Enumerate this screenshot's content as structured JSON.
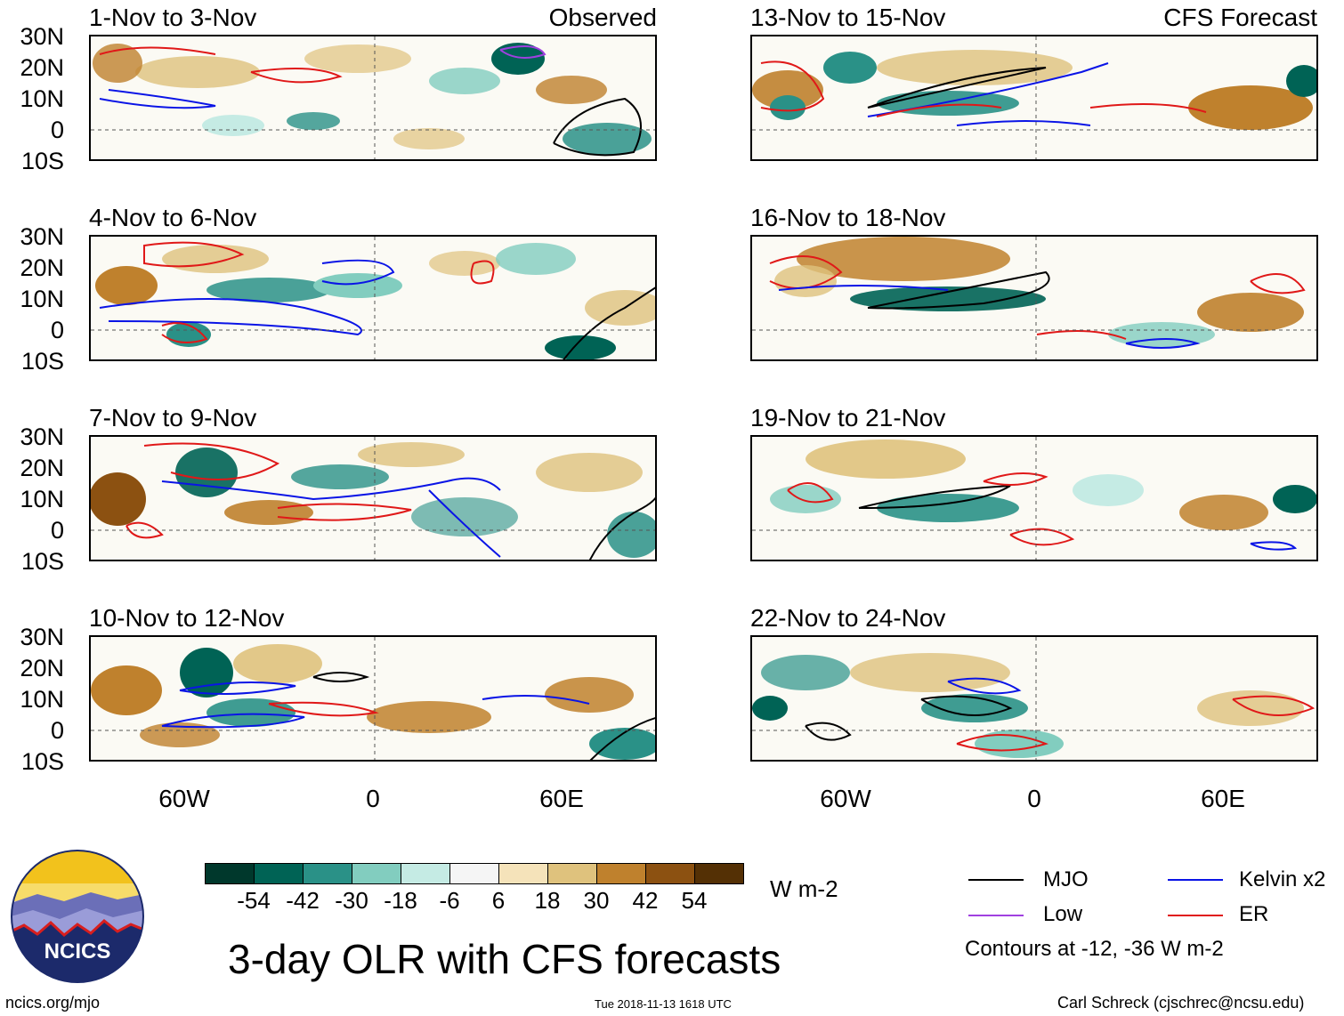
{
  "header": {
    "observed_label": "Observed",
    "forecast_label": "CFS Forecast"
  },
  "panels": {
    "left": [
      {
        "title": "1-Nov to 3-Nov"
      },
      {
        "title": "4-Nov to 6-Nov"
      },
      {
        "title": "7-Nov to 9-Nov"
      },
      {
        "title": "10-Nov to 12-Nov"
      }
    ],
    "right": [
      {
        "title": "13-Nov to 15-Nov"
      },
      {
        "title": "16-Nov to 18-Nov"
      },
      {
        "title": "19-Nov to 21-Nov"
      },
      {
        "title": "22-Nov to 24-Nov"
      }
    ]
  },
  "axes": {
    "lat_labels": [
      "30N",
      "20N",
      "10N",
      "0",
      "10S"
    ],
    "lon_labels": [
      "60W",
      "0",
      "60E"
    ]
  },
  "colorbar": {
    "ticks": [
      "-54",
      "-42",
      "-30",
      "-18",
      "-6",
      "6",
      "18",
      "30",
      "42",
      "54"
    ],
    "colors": [
      "#00382c",
      "#006355",
      "#2a9187",
      "#82cdbf",
      "#c5ebe4",
      "#f5f5f5",
      "#f5e3ba",
      "#dfc27d",
      "#bf812d",
      "#8c5111",
      "#543005"
    ],
    "units": "W m-2"
  },
  "legend": {
    "items": [
      {
        "label": "MJO",
        "color": "#000000"
      },
      {
        "label": "Kelvin x2",
        "color": "#0a14e6"
      },
      {
        "label": "Low",
        "color": "#a040e0"
      },
      {
        "label": "ER",
        "color": "#e01818"
      }
    ],
    "note": "Contours at -12, -36 W m-2"
  },
  "logo": {
    "text": "NCICS"
  },
  "main_title": "3-day OLR with CFS forecasts",
  "footer": {
    "left": "ncics.org/mjo",
    "center": "Tue 2018-11-13 1618 UTC",
    "right": "Carl Schreck (cjschrec@ncsu.edu)"
  }
}
